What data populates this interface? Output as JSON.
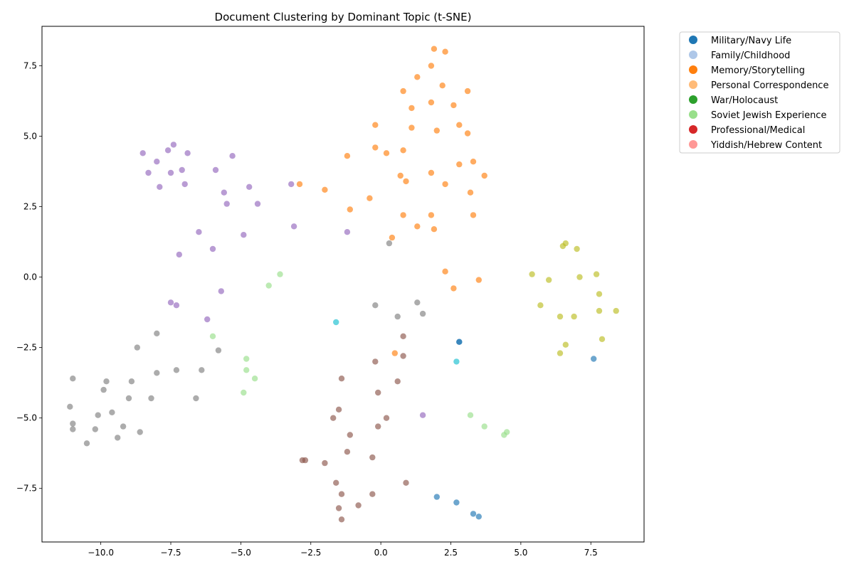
{
  "chart_data": {
    "type": "scatter",
    "title": "Document Clustering by Dominant Topic (t-SNE)",
    "xlabel": "",
    "ylabel": "",
    "xlim": [
      -12.1,
      9.4
    ],
    "ylim": [
      -9.4,
      8.9
    ],
    "xticks": [
      -10.0,
      -7.5,
      -5.0,
      -2.5,
      0.0,
      2.5,
      5.0,
      7.5
    ],
    "xtick_labels": [
      "−10.0",
      "−7.5",
      "−5.0",
      "−2.5",
      "0.0",
      "2.5",
      "5.0",
      "7.5"
    ],
    "yticks": [
      -7.5,
      -5.0,
      -2.5,
      0.0,
      2.5,
      5.0,
      7.5
    ],
    "ytick_labels": [
      "−7.5",
      "−5.0",
      "−2.5",
      "0.0",
      "2.5",
      "5.0",
      "7.5"
    ],
    "grid": false,
    "legend_position": "outside-top-right",
    "legend": [
      {
        "name": "Military/Navy Life",
        "color": "#1f77b4"
      },
      {
        "name": "Family/Childhood",
        "color": "#aec7e8"
      },
      {
        "name": "Memory/Storytelling",
        "color": "#ff7f0e"
      },
      {
        "name": "Personal Correspondence",
        "color": "#ffbb78"
      },
      {
        "name": "War/Holocaust",
        "color": "#2ca02c"
      },
      {
        "name": "Soviet Jewish Experience",
        "color": "#98df8a"
      },
      {
        "name": "Professional/Medical",
        "color": "#d62728"
      },
      {
        "name": "Yiddish/Hebrew Content",
        "color": "#ff9896"
      }
    ],
    "series": [
      {
        "color": "#ff7f0e",
        "points": [
          [
            1.9,
            8.1
          ],
          [
            2.3,
            8.0
          ],
          [
            1.8,
            7.5
          ],
          [
            1.3,
            7.1
          ],
          [
            2.2,
            6.8
          ],
          [
            0.8,
            6.6
          ],
          [
            3.1,
            6.6
          ],
          [
            1.8,
            6.2
          ],
          [
            2.6,
            6.1
          ],
          [
            1.1,
            6.0
          ],
          [
            -0.2,
            5.4
          ],
          [
            1.1,
            5.3
          ],
          [
            2.0,
            5.2
          ],
          [
            2.8,
            5.4
          ],
          [
            3.1,
            5.1
          ],
          [
            -0.2,
            4.6
          ],
          [
            0.2,
            4.4
          ],
          [
            0.8,
            4.5
          ],
          [
            -1.2,
            4.3
          ],
          [
            3.3,
            4.1
          ],
          [
            2.8,
            4.0
          ],
          [
            1.8,
            3.7
          ],
          [
            0.7,
            3.6
          ],
          [
            0.9,
            3.4
          ],
          [
            2.3,
            3.3
          ],
          [
            3.7,
            3.6
          ],
          [
            -2.9,
            3.3
          ],
          [
            -2.0,
            3.1
          ],
          [
            3.2,
            3.0
          ],
          [
            -0.4,
            2.8
          ],
          [
            -1.1,
            2.4
          ],
          [
            0.8,
            2.2
          ],
          [
            1.8,
            2.2
          ],
          [
            3.3,
            2.2
          ],
          [
            1.3,
            1.8
          ],
          [
            1.9,
            1.7
          ],
          [
            0.4,
            1.4
          ],
          [
            2.3,
            0.2
          ],
          [
            3.5,
            -0.1
          ],
          [
            2.6,
            -0.4
          ],
          [
            0.5,
            -2.7
          ]
        ]
      },
      {
        "color": "#9467bd",
        "points": [
          [
            -7.4,
            4.7
          ],
          [
            -8.5,
            4.4
          ],
          [
            -7.6,
            4.5
          ],
          [
            -6.9,
            4.4
          ],
          [
            -5.3,
            4.3
          ],
          [
            -8.0,
            4.1
          ],
          [
            -7.1,
            3.8
          ],
          [
            -8.3,
            3.7
          ],
          [
            -7.5,
            3.7
          ],
          [
            -5.9,
            3.8
          ],
          [
            -7.9,
            3.2
          ],
          [
            -7.0,
            3.3
          ],
          [
            -5.6,
            3.0
          ],
          [
            -4.7,
            3.2
          ],
          [
            -3.2,
            3.3
          ],
          [
            -5.5,
            2.6
          ],
          [
            -4.4,
            2.6
          ],
          [
            -3.1,
            1.8
          ],
          [
            -6.5,
            1.6
          ],
          [
            -4.9,
            1.5
          ],
          [
            -1.2,
            1.6
          ],
          [
            -6.0,
            1.0
          ],
          [
            -7.2,
            0.8
          ],
          [
            -5.7,
            -0.5
          ],
          [
            -7.5,
            -0.9
          ],
          [
            -7.3,
            -1.0
          ],
          [
            -6.2,
            -1.5
          ],
          [
            1.5,
            -4.9
          ]
        ]
      },
      {
        "color": "#7f7f7f",
        "points": [
          [
            0.3,
            1.2
          ],
          [
            -0.2,
            -1.0
          ],
          [
            1.3,
            -0.9
          ],
          [
            0.6,
            -1.4
          ],
          [
            1.5,
            -1.3
          ],
          [
            -8.0,
            -2.0
          ],
          [
            -8.7,
            -2.5
          ],
          [
            -5.8,
            -2.6
          ],
          [
            -7.3,
            -3.3
          ],
          [
            -8.0,
            -3.4
          ],
          [
            -6.4,
            -3.3
          ],
          [
            -11.0,
            -3.6
          ],
          [
            -9.8,
            -3.7
          ],
          [
            -8.9,
            -3.7
          ],
          [
            -9.9,
            -4.0
          ],
          [
            -9.0,
            -4.3
          ],
          [
            -8.2,
            -4.3
          ],
          [
            -6.6,
            -4.3
          ],
          [
            -11.1,
            -4.6
          ],
          [
            -9.6,
            -4.8
          ],
          [
            -10.1,
            -4.9
          ],
          [
            -11.0,
            -5.2
          ],
          [
            -9.2,
            -5.3
          ],
          [
            -11.0,
            -5.4
          ],
          [
            -10.2,
            -5.4
          ],
          [
            -8.6,
            -5.5
          ],
          [
            -9.4,
            -5.7
          ],
          [
            -10.5,
            -5.9
          ]
        ]
      },
      {
        "color": "#bcbd22",
        "points": [
          [
            6.6,
            1.2
          ],
          [
            6.5,
            1.1
          ],
          [
            7.0,
            1.0
          ],
          [
            5.4,
            0.1
          ],
          [
            6.0,
            -0.1
          ],
          [
            7.1,
            0.0
          ],
          [
            7.7,
            0.1
          ],
          [
            7.8,
            -0.6
          ],
          [
            5.7,
            -1.0
          ],
          [
            6.4,
            -1.4
          ],
          [
            6.9,
            -1.4
          ],
          [
            7.8,
            -1.2
          ],
          [
            8.4,
            -1.2
          ],
          [
            7.9,
            -2.2
          ],
          [
            6.6,
            -2.4
          ],
          [
            6.4,
            -2.7
          ]
        ]
      },
      {
        "color": "#8c564b",
        "points": [
          [
            0.8,
            -2.1
          ],
          [
            0.8,
            -2.8
          ],
          [
            -0.2,
            -3.0
          ],
          [
            -1.4,
            -3.6
          ],
          [
            0.6,
            -3.7
          ],
          [
            -0.1,
            -4.1
          ],
          [
            -1.5,
            -4.7
          ],
          [
            -1.7,
            -5.0
          ],
          [
            0.2,
            -5.0
          ],
          [
            -0.1,
            -5.3
          ],
          [
            -1.1,
            -5.6
          ],
          [
            -1.2,
            -6.2
          ],
          [
            -0.3,
            -6.4
          ],
          [
            -2.8,
            -6.5
          ],
          [
            -2.7,
            -6.5
          ],
          [
            -2.0,
            -6.6
          ],
          [
            -1.6,
            -7.3
          ],
          [
            0.9,
            -7.3
          ],
          [
            -1.4,
            -7.7
          ],
          [
            -0.3,
            -7.7
          ],
          [
            -0.8,
            -8.1
          ],
          [
            -1.5,
            -8.2
          ],
          [
            -1.4,
            -8.6
          ]
        ]
      },
      {
        "color": "#98df8a",
        "points": [
          [
            -3.6,
            0.1
          ],
          [
            -4.0,
            -0.3
          ],
          [
            -6.0,
            -2.1
          ],
          [
            -4.8,
            -2.9
          ],
          [
            -4.8,
            -3.3
          ],
          [
            -4.5,
            -3.6
          ],
          [
            -4.9,
            -4.1
          ],
          [
            3.2,
            -4.9
          ],
          [
            3.7,
            -5.3
          ],
          [
            4.5,
            -5.5
          ],
          [
            4.4,
            -5.6
          ]
        ]
      },
      {
        "color": "#17becf",
        "points": [
          [
            -1.6,
            -1.6
          ],
          [
            2.7,
            -3.0
          ]
        ]
      },
      {
        "color": "#1f77b4",
        "points": [
          [
            2.8,
            -2.3
          ],
          [
            2.8,
            -2.3
          ],
          [
            7.6,
            -2.9
          ],
          [
            2.0,
            -7.8
          ],
          [
            2.7,
            -8.0
          ],
          [
            3.3,
            -8.4
          ],
          [
            3.5,
            -8.5
          ]
        ]
      }
    ]
  }
}
